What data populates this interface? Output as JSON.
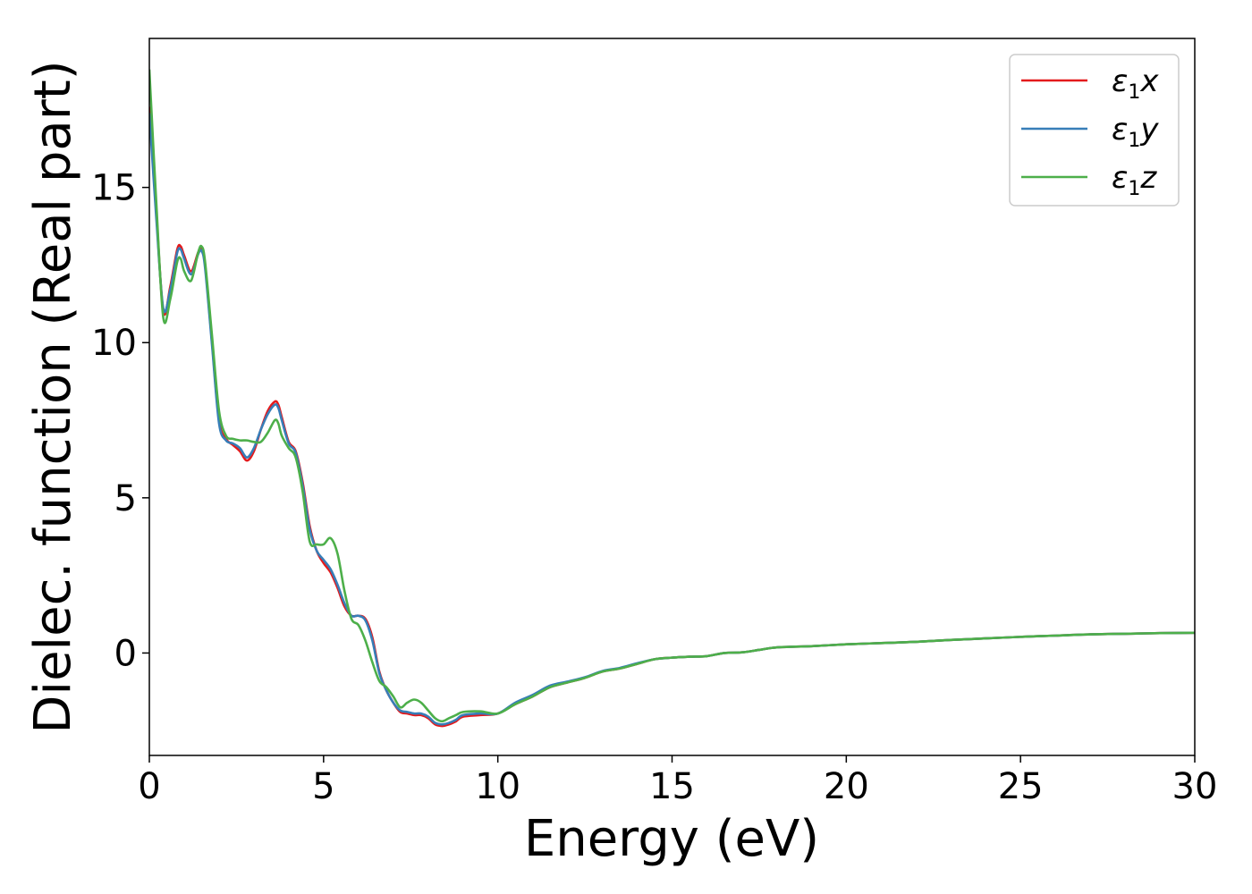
{
  "chart_data": {
    "type": "line",
    "title": "",
    "xlabel": "Energy (eV)",
    "ylabel": "Dielec. function (Real part)",
    "xlim": [
      0,
      30
    ],
    "ylim": [
      -3.3,
      19.8
    ],
    "xticks": [
      0,
      5,
      10,
      15,
      20,
      25,
      30
    ],
    "yticks": [
      0,
      5,
      10,
      15
    ],
    "grid": false,
    "legend_position": "top-right",
    "series": [
      {
        "name": "ε1x",
        "symbol": "ε",
        "sub": "1",
        "suffix": "x",
        "color": "#e41a1c",
        "x": [
          0,
          0.2,
          0.4,
          0.6,
          0.8,
          0.9,
          1.0,
          1.2,
          1.4,
          1.5,
          1.6,
          1.8,
          2.0,
          2.2,
          2.4,
          2.6,
          2.8,
          3.0,
          3.2,
          3.4,
          3.6,
          3.7,
          3.8,
          4.0,
          4.2,
          4.4,
          4.6,
          4.8,
          5.0,
          5.2,
          5.4,
          5.6,
          5.8,
          6.0,
          6.2,
          6.4,
          6.6,
          6.8,
          7.0,
          7.2,
          7.4,
          7.6,
          7.8,
          8.0,
          8.2,
          8.4,
          8.6,
          8.8,
          9.0,
          9.5,
          10.0,
          10.5,
          11.0,
          11.5,
          12.0,
          12.5,
          13.0,
          13.5,
          14.0,
          14.5,
          15.0,
          15.5,
          16.0,
          16.5,
          17.0,
          17.5,
          18.0,
          19.0,
          20.0,
          21.0,
          22.0,
          23.0,
          24.0,
          25.0,
          26.0,
          27.0,
          28.0,
          29.0,
          30.0
        ],
        "y": [
          17.6,
          14.2,
          11.0,
          11.8,
          13.0,
          13.1,
          12.8,
          12.3,
          12.9,
          13.0,
          12.5,
          10.0,
          7.5,
          6.9,
          6.7,
          6.5,
          6.2,
          6.5,
          7.2,
          7.8,
          8.1,
          8.0,
          7.6,
          6.8,
          6.5,
          5.5,
          4.1,
          3.3,
          2.9,
          2.6,
          2.1,
          1.5,
          1.2,
          1.2,
          1.1,
          0.5,
          -0.6,
          -1.2,
          -1.6,
          -1.9,
          -1.95,
          -2.0,
          -2.0,
          -2.1,
          -2.3,
          -2.35,
          -2.3,
          -2.2,
          -2.05,
          -2.0,
          -1.95,
          -1.65,
          -1.4,
          -1.1,
          -0.95,
          -0.8,
          -0.6,
          -0.5,
          -0.35,
          -0.2,
          -0.15,
          -0.12,
          -0.1,
          0.0,
          0.02,
          0.1,
          0.18,
          0.22,
          0.28,
          0.32,
          0.36,
          0.42,
          0.47,
          0.52,
          0.56,
          0.6,
          0.62,
          0.64,
          0.65
        ]
      },
      {
        "name": "ε1y",
        "symbol": "ε",
        "sub": "1",
        "suffix": "y",
        "color": "#377eb8",
        "x": [
          0,
          0.2,
          0.4,
          0.6,
          0.8,
          0.9,
          1.0,
          1.2,
          1.4,
          1.5,
          1.6,
          1.8,
          2.0,
          2.2,
          2.4,
          2.6,
          2.8,
          3.0,
          3.2,
          3.4,
          3.6,
          3.7,
          3.8,
          4.0,
          4.2,
          4.4,
          4.6,
          4.8,
          5.0,
          5.2,
          5.4,
          5.6,
          5.8,
          6.0,
          6.2,
          6.4,
          6.6,
          6.8,
          7.0,
          7.2,
          7.4,
          7.6,
          7.8,
          8.0,
          8.2,
          8.4,
          8.6,
          8.8,
          9.0,
          9.5,
          10.0,
          10.5,
          11.0,
          11.5,
          12.0,
          12.5,
          13.0,
          13.5,
          14.0,
          14.5,
          15.0,
          15.5,
          16.0,
          16.5,
          17.0,
          17.5,
          18.0,
          19.0,
          20.0,
          21.0,
          22.0,
          23.0,
          24.0,
          25.0,
          26.0,
          27.0,
          28.0,
          29.0,
          30.0
        ],
        "y": [
          17.4,
          14.0,
          11.1,
          11.7,
          12.9,
          13.0,
          12.7,
          12.2,
          12.85,
          12.95,
          12.4,
          9.9,
          7.4,
          6.85,
          6.75,
          6.6,
          6.3,
          6.6,
          7.2,
          7.7,
          8.0,
          7.9,
          7.5,
          6.75,
          6.45,
          5.4,
          4.0,
          3.3,
          3.0,
          2.7,
          2.2,
          1.6,
          1.2,
          1.2,
          1.05,
          0.4,
          -0.65,
          -1.2,
          -1.6,
          -1.85,
          -1.9,
          -1.95,
          -1.95,
          -2.05,
          -2.25,
          -2.3,
          -2.25,
          -2.15,
          -2.0,
          -1.95,
          -1.95,
          -1.6,
          -1.35,
          -1.05,
          -0.92,
          -0.78,
          -0.58,
          -0.48,
          -0.33,
          -0.2,
          -0.15,
          -0.12,
          -0.1,
          0.0,
          0.02,
          0.1,
          0.18,
          0.22,
          0.28,
          0.32,
          0.36,
          0.42,
          0.47,
          0.52,
          0.56,
          0.6,
          0.62,
          0.64,
          0.65
        ]
      },
      {
        "name": "ε1z",
        "symbol": "ε",
        "sub": "1",
        "suffix": "z",
        "color": "#4daf4a",
        "x": [
          0,
          0.2,
          0.4,
          0.6,
          0.8,
          0.9,
          1.0,
          1.2,
          1.4,
          1.5,
          1.6,
          1.8,
          2.0,
          2.2,
          2.4,
          2.6,
          2.8,
          3.0,
          3.2,
          3.4,
          3.6,
          3.7,
          3.8,
          4.0,
          4.2,
          4.4,
          4.6,
          4.8,
          5.0,
          5.2,
          5.4,
          5.6,
          5.8,
          6.0,
          6.2,
          6.4,
          6.6,
          6.8,
          7.0,
          7.2,
          7.4,
          7.6,
          7.8,
          8.0,
          8.2,
          8.4,
          8.6,
          8.8,
          9.0,
          9.5,
          10.0,
          10.5,
          11.0,
          11.5,
          12.0,
          12.5,
          13.0,
          13.5,
          14.0,
          14.5,
          15.0,
          15.5,
          16.0,
          16.5,
          17.0,
          17.5,
          18.0,
          19.0,
          20.0,
          21.0,
          22.0,
          23.0,
          24.0,
          25.0,
          26.0,
          27.0,
          28.0,
          29.0,
          30.0
        ],
        "y": [
          18.8,
          14.5,
          10.8,
          11.4,
          12.6,
          12.7,
          12.3,
          12.0,
          12.9,
          13.1,
          12.6,
          10.2,
          7.8,
          7.0,
          6.9,
          6.85,
          6.85,
          6.8,
          6.8,
          7.1,
          7.5,
          7.4,
          7.0,
          6.6,
          6.3,
          5.2,
          3.6,
          3.5,
          3.5,
          3.7,
          3.2,
          2.0,
          1.1,
          0.9,
          0.4,
          -0.3,
          -0.9,
          -1.1,
          -1.4,
          -1.75,
          -1.6,
          -1.5,
          -1.6,
          -1.85,
          -2.1,
          -2.2,
          -2.1,
          -2.0,
          -1.9,
          -1.88,
          -1.95,
          -1.65,
          -1.4,
          -1.1,
          -0.95,
          -0.8,
          -0.6,
          -0.5,
          -0.35,
          -0.2,
          -0.15,
          -0.12,
          -0.1,
          0.0,
          0.02,
          0.1,
          0.18,
          0.22,
          0.28,
          0.32,
          0.36,
          0.42,
          0.47,
          0.52,
          0.56,
          0.6,
          0.62,
          0.64,
          0.65
        ]
      }
    ]
  }
}
